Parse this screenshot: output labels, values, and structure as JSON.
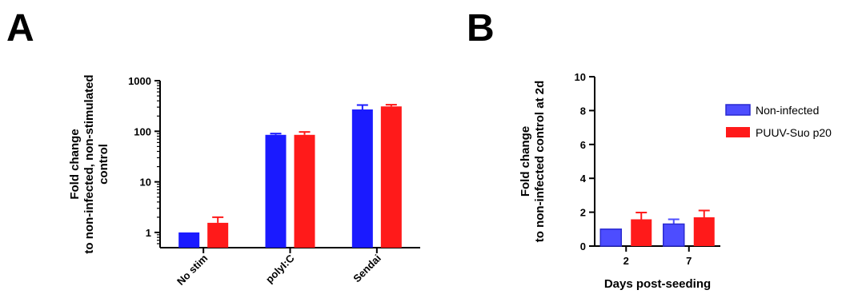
{
  "panels": {
    "a": {
      "letter": "A"
    },
    "b": {
      "letter": "B"
    }
  },
  "chart_data": [
    {
      "type": "bar",
      "panel": "A",
      "ylabel_lines": [
        "Fold change",
        "to non-infected, non-stimulated",
        "control"
      ],
      "xlabel": "",
      "yscale": "log",
      "ylim": [
        0.5,
        1000
      ],
      "yticks": [
        1,
        10,
        100,
        1000
      ],
      "ytick_labels": [
        "1",
        "10",
        "100",
        "1000"
      ],
      "categories": [
        "No stim",
        "polyI:C",
        "Sendai"
      ],
      "series": [
        {
          "color": "#1a1aff",
          "values": [
            1,
            85,
            270
          ],
          "errors": [
            0,
            5,
            60
          ]
        },
        {
          "color": "#ff1a1a",
          "values": [
            1.55,
            85,
            310
          ],
          "errors": [
            0.45,
            12,
            25
          ]
        }
      ]
    },
    {
      "type": "bar",
      "panel": "B",
      "ylabel_lines": [
        "Fold change",
        "to non-infected control at 2d"
      ],
      "xlabel": "Days post-seeding",
      "ylim": [
        0,
        10
      ],
      "yticks": [
        0,
        2,
        4,
        6,
        8,
        10
      ],
      "categories": [
        "2",
        "7"
      ],
      "legend_position": "top-right",
      "series": [
        {
          "name": "Non-infected",
          "color": "#4d4dff",
          "values": [
            1.0,
            1.3
          ],
          "errors": [
            0,
            0.28
          ]
        },
        {
          "name": "PUUV-Suo p20",
          "color": "#ff1a1a",
          "values": [
            1.58,
            1.7
          ],
          "errors": [
            0.4,
            0.4
          ]
        }
      ]
    }
  ]
}
